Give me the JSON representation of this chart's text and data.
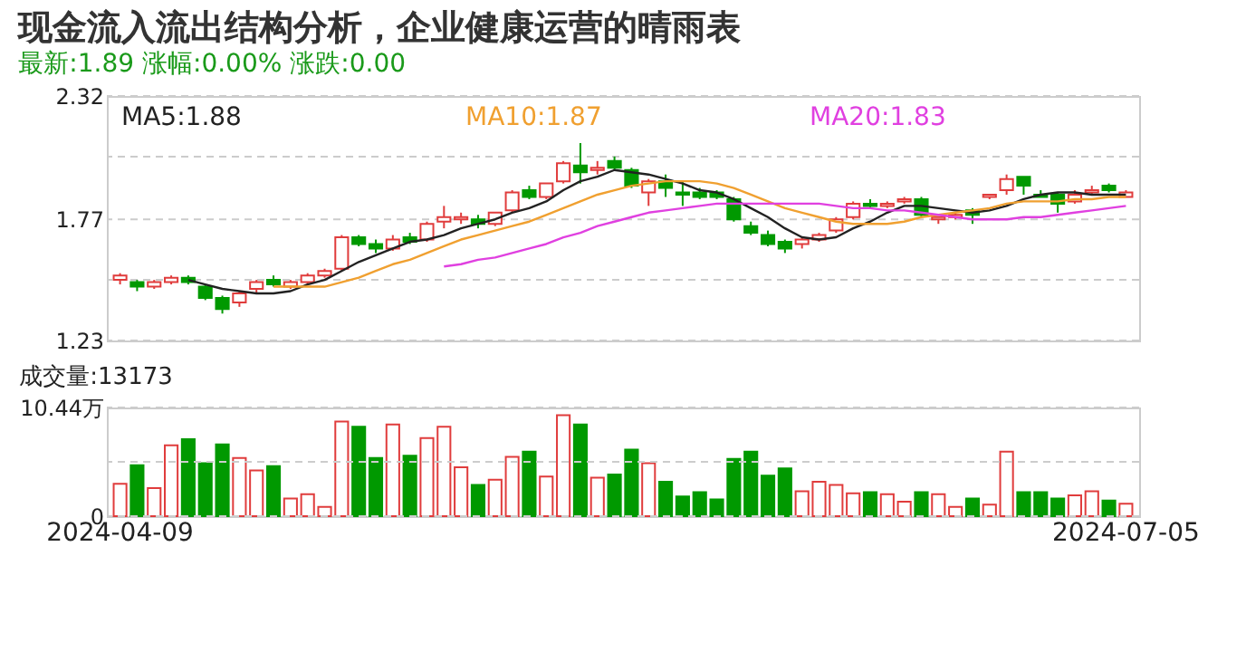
{
  "chart_data": [
    {
      "type": "candlestick",
      "title": "现金流入流出结构分析，企业健康运营的晴雨表",
      "subtitle": "最新:1.89  涨幅:0.00%  涨跌:0.00",
      "categories": [
        "2024-04-09",
        null,
        null,
        null,
        null,
        null,
        null,
        null,
        null,
        null,
        null,
        null,
        null,
        null,
        null,
        null,
        null,
        null,
        null,
        null,
        null,
        null,
        null,
        null,
        null,
        null,
        null,
        null,
        null,
        null,
        null,
        null,
        null,
        null,
        null,
        null,
        null,
        null,
        null,
        null,
        null,
        null,
        null,
        null,
        null,
        null,
        null,
        null,
        null,
        null,
        null,
        null,
        null,
        null,
        null,
        null,
        null,
        null,
        null,
        "2024-07-05"
      ],
      "ohlc": [
        [
          1.5,
          1.53,
          1.48,
          1.52
        ],
        [
          1.49,
          1.5,
          1.45,
          1.47
        ],
        [
          1.47,
          1.5,
          1.46,
          1.49
        ],
        [
          1.49,
          1.52,
          1.48,
          1.51
        ],
        [
          1.51,
          1.52,
          1.48,
          1.49
        ],
        [
          1.47,
          1.48,
          1.41,
          1.42
        ],
        [
          1.42,
          1.43,
          1.35,
          1.37
        ],
        [
          1.4,
          1.45,
          1.38,
          1.44
        ],
        [
          1.46,
          1.5,
          1.44,
          1.49
        ],
        [
          1.5,
          1.52,
          1.47,
          1.48
        ],
        [
          1.47,
          1.5,
          1.46,
          1.49
        ],
        [
          1.49,
          1.53,
          1.48,
          1.52
        ],
        [
          1.52,
          1.55,
          1.51,
          1.54
        ],
        [
          1.55,
          1.7,
          1.54,
          1.69
        ],
        [
          1.69,
          1.7,
          1.65,
          1.66
        ],
        [
          1.66,
          1.68,
          1.62,
          1.64
        ],
        [
          1.64,
          1.7,
          1.63,
          1.68
        ],
        [
          1.69,
          1.71,
          1.66,
          1.67
        ],
        [
          1.68,
          1.76,
          1.67,
          1.75
        ],
        [
          1.76,
          1.83,
          1.73,
          1.78
        ],
        [
          1.77,
          1.8,
          1.75,
          1.78
        ],
        [
          1.77,
          1.79,
          1.73,
          1.75
        ],
        [
          1.75,
          1.8,
          1.74,
          1.8
        ],
        [
          1.81,
          1.9,
          1.8,
          1.89
        ],
        [
          1.9,
          1.92,
          1.86,
          1.87
        ],
        [
          1.87,
          1.93,
          1.86,
          1.93
        ],
        [
          1.94,
          2.03,
          1.93,
          2.02
        ],
        [
          2.01,
          2.11,
          1.93,
          1.98
        ],
        [
          1.99,
          2.03,
          1.97,
          2.0
        ],
        [
          2.03,
          2.05,
          1.99,
          2.0
        ],
        [
          1.99,
          2.0,
          1.91,
          1.92
        ],
        [
          1.89,
          1.95,
          1.83,
          1.94
        ],
        [
          1.94,
          1.97,
          1.87,
          1.91
        ],
        [
          1.89,
          1.94,
          1.83,
          1.88
        ],
        [
          1.89,
          1.91,
          1.86,
          1.87
        ],
        [
          1.89,
          1.9,
          1.86,
          1.87
        ],
        [
          1.86,
          1.87,
          1.76,
          1.77
        ],
        [
          1.74,
          1.76,
          1.7,
          1.71
        ],
        [
          1.7,
          1.72,
          1.65,
          1.66
        ],
        [
          1.67,
          1.68,
          1.62,
          1.64
        ],
        [
          1.66,
          1.69,
          1.64,
          1.68
        ],
        [
          1.68,
          1.71,
          1.67,
          1.7
        ],
        [
          1.72,
          1.78,
          1.71,
          1.77
        ],
        [
          1.78,
          1.85,
          1.77,
          1.84
        ],
        [
          1.84,
          1.86,
          1.82,
          1.83
        ],
        [
          1.83,
          1.85,
          1.82,
          1.84
        ],
        [
          1.85,
          1.87,
          1.84,
          1.86
        ],
        [
          1.86,
          1.87,
          1.78,
          1.79
        ],
        [
          1.77,
          1.78,
          1.75,
          1.78
        ],
        [
          1.78,
          1.8,
          1.77,
          1.79
        ],
        [
          1.81,
          1.82,
          1.75,
          1.79
        ],
        [
          1.87,
          1.88,
          1.86,
          1.88
        ],
        [
          1.9,
          1.97,
          1.88,
          1.95
        ],
        [
          1.96,
          1.96,
          1.88,
          1.92
        ],
        [
          1.88,
          1.9,
          1.87,
          1.87
        ],
        [
          1.88,
          1.89,
          1.8,
          1.84
        ],
        [
          1.85,
          1.9,
          1.84,
          1.88
        ],
        [
          1.89,
          1.92,
          1.88,
          1.9
        ],
        [
          1.92,
          1.93,
          1.89,
          1.9
        ],
        [
          1.87,
          1.9,
          1.87,
          1.89
        ]
      ],
      "colors": [
        "#e03c3c",
        "#009900",
        "#e03c3c",
        "#e03c3c",
        "#009900",
        "#009900",
        "#009900",
        "#e03c3c",
        "#e03c3c",
        "#009900",
        "#e03c3c",
        "#e03c3c",
        "#e03c3c",
        "#e03c3c",
        "#009900",
        "#009900",
        "#e03c3c",
        "#009900",
        "#e03c3c",
        "#e03c3c",
        "#e03c3c",
        "#009900",
        "#e03c3c",
        "#e03c3c",
        "#009900",
        "#e03c3c",
        "#e03c3c",
        "#009900",
        "#e03c3c",
        "#009900",
        "#009900",
        "#e03c3c",
        "#009900",
        "#009900",
        "#009900",
        "#009900",
        "#009900",
        "#009900",
        "#009900",
        "#009900",
        "#e03c3c",
        "#e03c3c",
        "#e03c3c",
        "#e03c3c",
        "#009900",
        "#e03c3c",
        "#e03c3c",
        "#009900",
        "#e03c3c",
        "#e03c3c",
        "#009900",
        "#e03c3c",
        "#e03c3c",
        "#009900",
        "#009900",
        "#009900",
        "#e03c3c",
        "#e03c3c",
        "#009900",
        "#e03c3c"
      ],
      "series": [
        {
          "type": "line",
          "name": "MA5:1.88",
          "color": "#222222",
          "values": [
            null,
            null,
            null,
            null,
            1.5,
            1.48,
            1.46,
            1.45,
            1.44,
            1.44,
            1.45,
            1.48,
            1.5,
            1.54,
            1.58,
            1.61,
            1.64,
            1.67,
            1.68,
            1.7,
            1.73,
            1.75,
            1.77,
            1.8,
            1.82,
            1.85,
            1.9,
            1.94,
            1.96,
            1.99,
            1.98,
            1.97,
            1.95,
            1.93,
            1.9,
            1.89,
            1.86,
            1.82,
            1.78,
            1.73,
            1.69,
            1.68,
            1.69,
            1.73,
            1.76,
            1.8,
            1.83,
            1.83,
            1.82,
            1.81,
            1.8,
            1.81,
            1.83,
            1.86,
            1.88,
            1.89,
            1.89,
            1.88,
            1.88,
            1.88
          ]
        },
        {
          "type": "line",
          "name": "MA10:1.87",
          "color": "#f0a030",
          "values": [
            null,
            null,
            null,
            null,
            null,
            null,
            null,
            null,
            null,
            1.47,
            1.47,
            1.47,
            1.47,
            1.49,
            1.51,
            1.54,
            1.57,
            1.59,
            1.62,
            1.65,
            1.68,
            1.7,
            1.72,
            1.74,
            1.76,
            1.79,
            1.82,
            1.85,
            1.88,
            1.9,
            1.92,
            1.93,
            1.94,
            1.94,
            1.94,
            1.93,
            1.91,
            1.88,
            1.85,
            1.82,
            1.8,
            1.78,
            1.76,
            1.75,
            1.75,
            1.75,
            1.76,
            1.78,
            1.79,
            1.8,
            1.81,
            1.82,
            1.84,
            1.85,
            1.85,
            1.85,
            1.86,
            1.86,
            1.87,
            1.87
          ]
        },
        {
          "type": "line",
          "name": "MA20:1.83",
          "color": "#e040e0",
          "values": [
            null,
            null,
            null,
            null,
            null,
            null,
            null,
            null,
            null,
            null,
            null,
            null,
            null,
            null,
            null,
            null,
            null,
            null,
            null,
            1.56,
            1.57,
            1.59,
            1.6,
            1.62,
            1.64,
            1.66,
            1.69,
            1.71,
            1.74,
            1.76,
            1.78,
            1.8,
            1.81,
            1.82,
            1.83,
            1.84,
            1.84,
            1.84,
            1.84,
            1.84,
            1.84,
            1.84,
            1.83,
            1.82,
            1.82,
            1.81,
            1.81,
            1.8,
            1.79,
            1.78,
            1.77,
            1.77,
            1.77,
            1.78,
            1.78,
            1.79,
            1.8,
            1.81,
            1.82,
            1.83
          ]
        }
      ],
      "ylim": [
        1.23,
        2.32
      ],
      "yticks": [
        1.23,
        {
          "value": 1.5,
          "label": null
        },
        1.77,
        {
          "value": 2.05,
          "label": null
        },
        2.32
      ],
      "grid": "y",
      "tick_labels": "y"
    },
    {
      "type": "bar",
      "annotations": [
        "成交量:13173"
      ],
      "categories": [
        "2024-04-09",
        null,
        null,
        null,
        null,
        null,
        null,
        null,
        null,
        null,
        null,
        null,
        null,
        null,
        null,
        null,
        null,
        null,
        null,
        null,
        null,
        null,
        null,
        null,
        null,
        null,
        null,
        null,
        null,
        null,
        null,
        null,
        null,
        null,
        null,
        null,
        null,
        null,
        null,
        null,
        null,
        null,
        null,
        null,
        null,
        null,
        null,
        null,
        null,
        null,
        null,
        null,
        null,
        null,
        null,
        null,
        null,
        null,
        null,
        "2024-07-05"
      ],
      "values": [
        3.1,
        4.9,
        2.7,
        6.8,
        7.4,
        5.1,
        6.9,
        5.6,
        4.4,
        4.8,
        1.7,
        2.1,
        0.9,
        9.1,
        8.6,
        5.6,
        8.8,
        5.8,
        7.5,
        8.6,
        4.7,
        3.0,
        3.5,
        5.7,
        6.2,
        3.8,
        9.7,
        8.8,
        3.7,
        4.0,
        6.4,
        5.1,
        3.3,
        1.9,
        2.3,
        1.6,
        5.5,
        6.2,
        3.9,
        4.6,
        2.4,
        3.3,
        3.0,
        2.2,
        2.3,
        2.1,
        1.4,
        2.3,
        2.1,
        0.9,
        1.7,
        1.1,
        6.2,
        2.3,
        2.3,
        1.7,
        2.0,
        2.4,
        1.5,
        1.2
      ],
      "colors": [
        "#e03c3c",
        "#009900",
        "#e03c3c",
        "#e03c3c",
        "#009900",
        "#009900",
        "#009900",
        "#e03c3c",
        "#e03c3c",
        "#009900",
        "#e03c3c",
        "#e03c3c",
        "#e03c3c",
        "#e03c3c",
        "#009900",
        "#009900",
        "#e03c3c",
        "#009900",
        "#e03c3c",
        "#e03c3c",
        "#e03c3c",
        "#009900",
        "#e03c3c",
        "#e03c3c",
        "#009900",
        "#e03c3c",
        "#e03c3c",
        "#009900",
        "#e03c3c",
        "#009900",
        "#009900",
        "#e03c3c",
        "#009900",
        "#009900",
        "#009900",
        "#009900",
        "#009900",
        "#009900",
        "#009900",
        "#009900",
        "#e03c3c",
        "#e03c3c",
        "#e03c3c",
        "#e03c3c",
        "#009900",
        "#e03c3c",
        "#e03c3c",
        "#009900",
        "#e03c3c",
        "#e03c3c",
        "#009900",
        "#e03c3c",
        "#e03c3c",
        "#009900",
        "#009900",
        "#009900",
        "#e03c3c",
        "#e03c3c",
        "#009900",
        "#e03c3c"
      ],
      "ylim": [
        0,
        10.44
      ],
      "yticks": [
        0,
        {
          "value": 5.22,
          "label": null
        },
        {
          "value": 10.44,
          "label": "10.44万"
        }
      ],
      "grid": "y"
    }
  ]
}
